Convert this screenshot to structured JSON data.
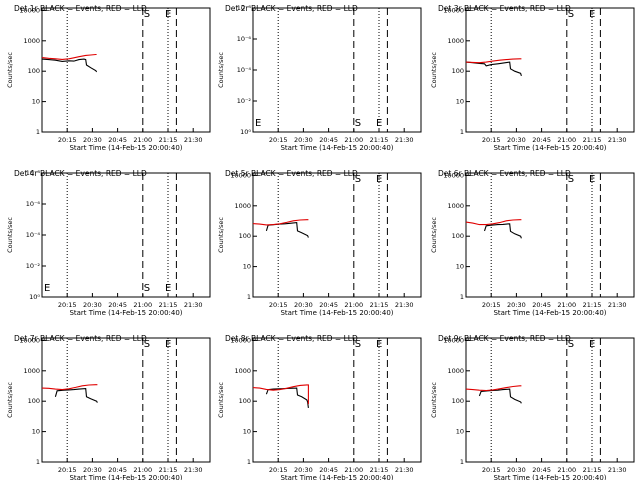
{
  "chart_data": [
    {
      "type": "line",
      "title": "Det 1r BLACK = Events, RED = LLD",
      "xlabel": "Start Time (14-Feb-15 20:00:40)",
      "ylabel": "Counts/sec",
      "x_ticks": [
        "20:15",
        "20:30",
        "20:45",
        "21:00",
        "21:15",
        "21:30"
      ],
      "y_ticks": [
        "1",
        "10",
        "100",
        "1000",
        "10000"
      ],
      "ylim": [
        1,
        12000
      ],
      "y_scale": "log",
      "markers": [
        "S",
        "E"
      ],
      "series": [
        {
          "color": "#000000",
          "x": [
            0,
            4,
            8,
            12,
            16,
            19,
            22,
            25,
            26,
            26.5,
            29,
            32,
            32.5
          ],
          "y": [
            250,
            240,
            230,
            210,
            220,
            215,
            240,
            250,
            240,
            160,
            130,
            105,
            95
          ]
        },
        {
          "color": "#e00000",
          "x": [
            0,
            4,
            8,
            12,
            16,
            19,
            22,
            26,
            29,
            32,
            32.5
          ],
          "y": [
            280,
            265,
            255,
            245,
            255,
            275,
            300,
            330,
            340,
            355,
            355
          ]
        }
      ]
    },
    {
      "type": "line",
      "title": "Det 2r BLACK = Events, RED = LLD",
      "xlabel": "Start Time (14-Feb-15 20:00:40)",
      "ylabel": "Counts/sec",
      "x_ticks": [
        "20:15",
        "20:30",
        "20:45",
        "21:00",
        "21:15",
        "21:30"
      ],
      "y_ticks": [
        "10⁰",
        "10⁻²",
        "10⁻⁴",
        "10⁻⁶",
        "10⁻⁸"
      ],
      "ylim": [
        -8,
        0
      ],
      "y_scale": "exponent",
      "markers": [
        "E",
        "S",
        "E"
      ],
      "series": []
    },
    {
      "type": "line",
      "title": "Det 3r BLACK = Events, RED = LLD",
      "xlabel": "Start Time (14-Feb-15 20:00:40)",
      "ylabel": "Counts/sec",
      "x_ticks": [
        "20:15",
        "20:30",
        "20:45",
        "21:00",
        "21:15",
        "21:30"
      ],
      "y_ticks": [
        "1",
        "10",
        "100",
        "1000",
        "10000"
      ],
      "ylim": [
        1,
        12000
      ],
      "y_scale": "log",
      "markers": [
        "S",
        "E"
      ],
      "series": [
        {
          "color": "#000000",
          "x": [
            0,
            4,
            8,
            11,
            12,
            15,
            19,
            22,
            26,
            26.5,
            29,
            32.5,
            33
          ],
          "y": [
            200,
            190,
            180,
            175,
            150,
            165,
            175,
            185,
            200,
            120,
            100,
            85,
            70
          ]
        },
        {
          "color": "#e00000",
          "x": [
            0,
            4,
            8,
            12,
            16,
            20,
            24,
            28,
            32,
            33
          ],
          "y": [
            200,
            195,
            190,
            200,
            215,
            230,
            240,
            250,
            255,
            255
          ]
        }
      ]
    },
    {
      "type": "line",
      "title": "Det 4r BLACK = Events, RED = LLD",
      "xlabel": "Start Time (14-Feb-15 20:00:40)",
      "ylabel": "Counts/sec",
      "x_ticks": [
        "20:15",
        "20:30",
        "20:45",
        "21:00",
        "21:15",
        "21:30"
      ],
      "y_ticks": [
        "10⁰",
        "10⁻²",
        "10⁻⁴",
        "10⁻⁶",
        "10⁻⁸"
      ],
      "ylim": [
        -8,
        0
      ],
      "y_scale": "exponent",
      "markers": [
        "E",
        "S",
        "E"
      ],
      "series": []
    },
    {
      "type": "line",
      "title": "Det 5r BLACK = Events, RED = LLD",
      "xlabel": "Start Time (14-Feb-15 20:00:40)",
      "ylabel": "Counts/sec",
      "x_ticks": [
        "20:15",
        "20:30",
        "20:45",
        "21:00",
        "21:15",
        "21:30"
      ],
      "y_ticks": [
        "1",
        "10",
        "100",
        "1000",
        "10000"
      ],
      "ylim": [
        1,
        12000
      ],
      "y_scale": "log",
      "markers": [
        "S",
        "E"
      ],
      "series": [
        {
          "color": "#000000",
          "x": [
            8,
            9,
            13,
            16,
            19,
            22,
            26,
            26.5,
            29,
            32.5,
            33
          ],
          "y": [
            150,
            230,
            240,
            250,
            255,
            265,
            280,
            150,
            130,
            105,
            90
          ]
        },
        {
          "color": "#e00000",
          "x": [
            0,
            4,
            8,
            12,
            16,
            20,
            24,
            28,
            32,
            33
          ],
          "y": [
            260,
            250,
            235,
            240,
            255,
            285,
            320,
            340,
            350,
            350
          ]
        }
      ]
    },
    {
      "type": "line",
      "title": "Det 6r BLACK = Events, RED = LLD",
      "xlabel": "Start Time (14-Feb-15 20:00:40)",
      "ylabel": "Counts/sec",
      "x_ticks": [
        "20:15",
        "20:30",
        "20:45",
        "21:00",
        "21:15",
        "21:30"
      ],
      "y_ticks": [
        "1",
        "10",
        "100",
        "1000",
        "10000"
      ],
      "ylim": [
        1,
        12000
      ],
      "y_scale": "log",
      "markers": [
        "S",
        "E"
      ],
      "series": [
        {
          "color": "#000000",
          "x": [
            11,
            12,
            15,
            19,
            22,
            26,
            26.5,
            29,
            32.5,
            33
          ],
          "y": [
            150,
            220,
            230,
            240,
            245,
            255,
            145,
            120,
            100,
            85
          ]
        },
        {
          "color": "#e00000",
          "x": [
            0,
            4,
            8,
            12,
            16,
            20,
            24,
            28,
            32,
            33
          ],
          "y": [
            290,
            270,
            240,
            240,
            255,
            280,
            320,
            340,
            350,
            350
          ]
        }
      ]
    },
    {
      "type": "line",
      "title": "Det 7r BLACK = Events, RED = LLD",
      "xlabel": "Start Time (14-Feb-15 20:00:40)",
      "ylabel": "Counts/sec",
      "x_ticks": [
        "20:15",
        "20:30",
        "20:45",
        "21:00",
        "21:15",
        "21:30"
      ],
      "y_ticks": [
        "1",
        "10",
        "100",
        "1000",
        "10000"
      ],
      "ylim": [
        1,
        12000
      ],
      "y_scale": "log",
      "markers": [
        "S",
        "E"
      ],
      "series": [
        {
          "color": "#000000",
          "x": [
            8,
            9,
            13,
            16,
            19,
            22,
            26,
            26.5,
            29,
            32.5,
            33
          ],
          "y": [
            140,
            220,
            230,
            235,
            240,
            250,
            260,
            140,
            120,
            100,
            90
          ]
        },
        {
          "color": "#e00000",
          "x": [
            0,
            4,
            8,
            12,
            16,
            20,
            24,
            28,
            32,
            33
          ],
          "y": [
            270,
            265,
            250,
            240,
            255,
            285,
            320,
            340,
            350,
            350
          ]
        }
      ]
    },
    {
      "type": "line",
      "title": "Det 8r BLACK = Events, RED = LLD",
      "xlabel": "Start Time (14-Feb-15 20:00:40)",
      "ylabel": "Counts/sec",
      "x_ticks": [
        "20:15",
        "20:30",
        "20:45",
        "21:00",
        "21:15",
        "21:30"
      ],
      "y_ticks": [
        "1",
        "10",
        "100",
        "1000",
        "10000"
      ],
      "ylim": [
        1,
        12000
      ],
      "y_scale": "log",
      "markers": [
        "S",
        "E"
      ],
      "series": [
        {
          "color": "#000000",
          "x": [
            8,
            9,
            12,
            16,
            19,
            22,
            26,
            26.5,
            29,
            32,
            32.5,
            33
          ],
          "y": [
            170,
            240,
            250,
            255,
            260,
            265,
            270,
            160,
            140,
            110,
            95,
            60
          ]
        },
        {
          "color": "#e00000",
          "x": [
            0,
            4,
            8,
            12,
            16,
            20,
            24,
            28,
            32,
            33,
            33
          ],
          "y": [
            280,
            270,
            245,
            230,
            240,
            265,
            300,
            330,
            345,
            345,
            80
          ]
        }
      ]
    },
    {
      "type": "line",
      "title": "Det 9r BLACK = Events, RED = LLD",
      "xlabel": "Start Time (14-Feb-15 20:00:40)",
      "ylabel": "Counts/sec",
      "x_ticks": [
        "20:15",
        "20:30",
        "20:45",
        "21:00",
        "21:15",
        "21:30"
      ],
      "y_ticks": [
        "1",
        "10",
        "100",
        "1000",
        "10000"
      ],
      "ylim": [
        1,
        12000
      ],
      "y_scale": "log",
      "markers": [
        "S",
        "E"
      ],
      "series": [
        {
          "color": "#000000",
          "x": [
            8,
            9,
            13,
            16,
            19,
            22,
            26,
            26.5,
            29,
            32.5,
            33
          ],
          "y": [
            150,
            210,
            220,
            225,
            230,
            240,
            250,
            140,
            115,
            95,
            85
          ]
        },
        {
          "color": "#e00000",
          "x": [
            0,
            4,
            8,
            12,
            16,
            20,
            24,
            28,
            32,
            33
          ],
          "y": [
            250,
            240,
            230,
            225,
            235,
            255,
            280,
            305,
            320,
            320
          ]
        }
      ]
    }
  ]
}
